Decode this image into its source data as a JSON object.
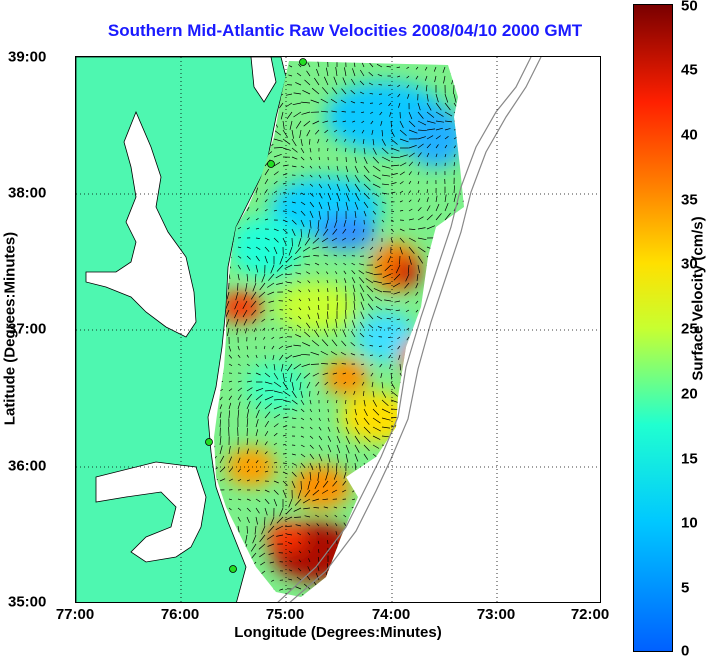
{
  "title": "Southern Mid-Atlantic Raw Velocities 2008/04/10 2000 GMT",
  "x_axis": {
    "label": "Longitude (Degrees:Minutes)",
    "ticks": [
      "77:00",
      "76:00",
      "75:00",
      "74:00",
      "73:00",
      "72:00"
    ]
  },
  "y_axis": {
    "label": "Latitude (Degrees:Minutes)",
    "ticks": [
      "39:00",
      "38:00",
      "37:00",
      "36:00",
      "35:00"
    ]
  },
  "colorbar": {
    "label": "Surface Velocity (cm/s)",
    "ticks": [
      "50",
      "45",
      "40",
      "35",
      "30",
      "25",
      "20",
      "15",
      "10",
      "5",
      "0"
    ],
    "range": [
      0,
      50
    ]
  },
  "colors": {
    "land": "#4ef7b0",
    "title": "#1a1aff",
    "station": "#22dd22"
  }
}
